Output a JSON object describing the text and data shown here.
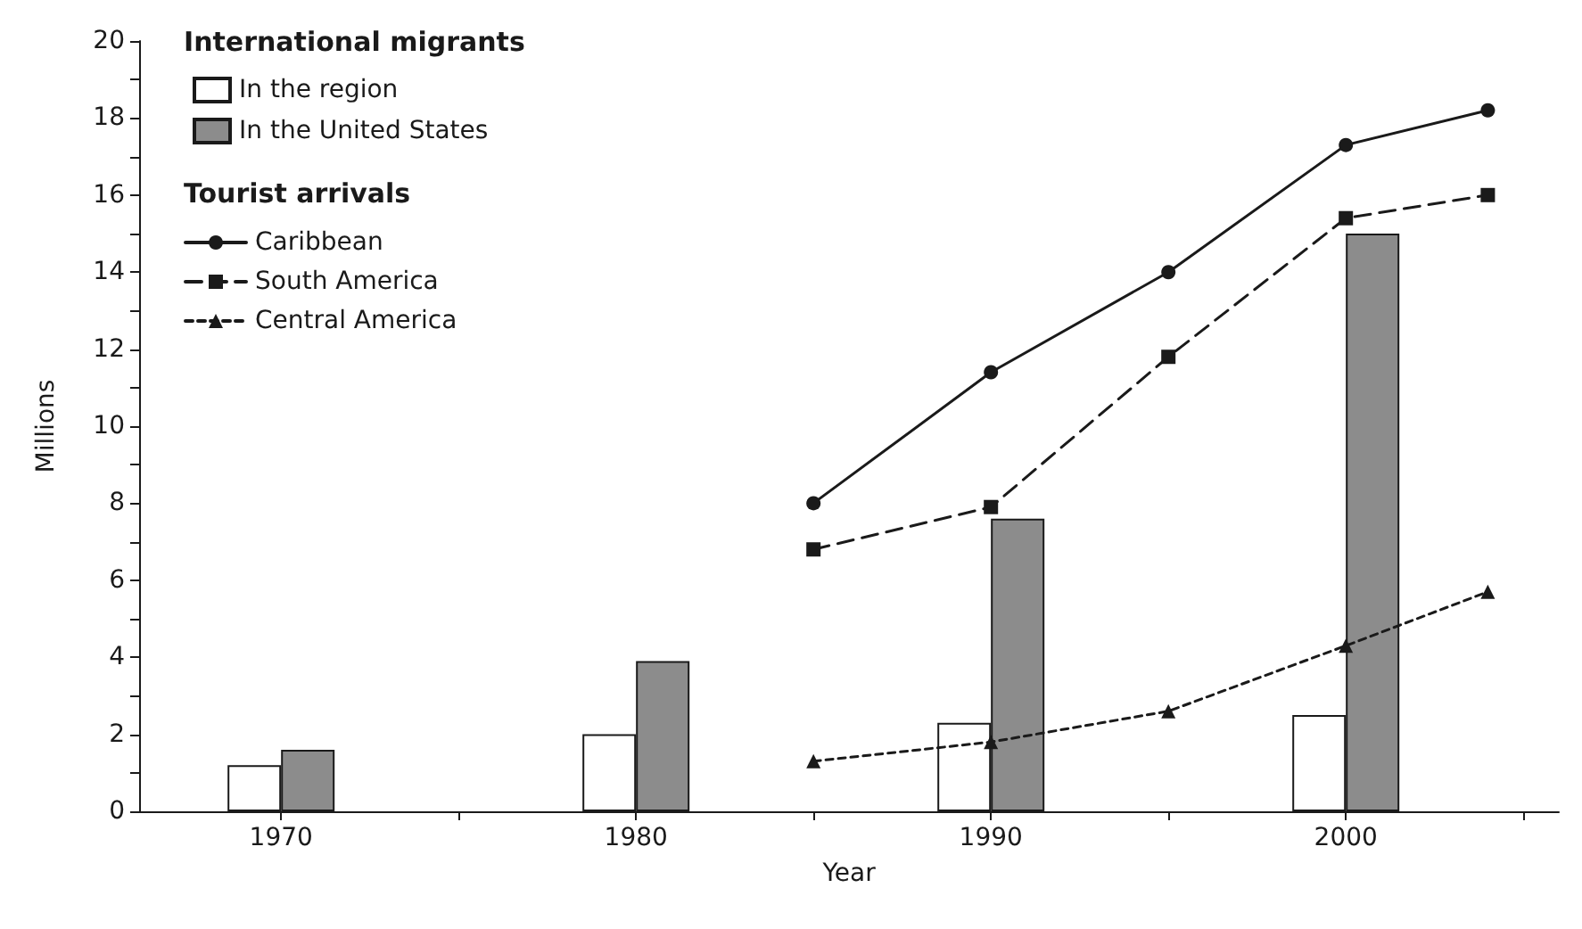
{
  "chart_data": {
    "type": "bar",
    "xlabel": "Year",
    "ylabel": "Millions",
    "legend_title": "International migrants",
    "annotations": [
      "Tourist arrivals"
    ],
    "xlim": [
      1966,
      2006
    ],
    "xticks": [
      1970,
      {
        "value": 1975,
        "label": null
      },
      1980,
      {
        "value": 1985,
        "label": null
      },
      1990,
      {
        "value": 1995,
        "label": null
      },
      2000,
      {
        "value": 2005,
        "label": null
      }
    ],
    "ylim": [
      0,
      20
    ],
    "yticks": [
      0,
      {
        "value": 1,
        "label": null
      },
      2,
      {
        "value": 3,
        "label": null
      },
      4,
      {
        "value": 5,
        "label": null
      },
      6,
      {
        "value": 7,
        "label": null
      },
      8,
      {
        "value": 9,
        "label": null
      },
      10,
      {
        "value": 11,
        "label": null
      },
      12,
      {
        "value": 13,
        "label": null
      },
      14,
      {
        "value": 15,
        "label": null
      },
      16,
      {
        "value": 17,
        "label": null
      },
      18,
      {
        "value": 19,
        "label": null
      },
      20
    ],
    "grid": false,
    "legend": "top left",
    "series": [
      {
        "name": "In the region",
        "color": "#ffffff",
        "x": [
          1970,
          1980,
          1990,
          2000
        ],
        "values": [
          1.2,
          2.0,
          2.3,
          2.5
        ]
      },
      {
        "name": "In the United States",
        "color": "#8c8c8c",
        "x": [
          1970,
          1980,
          1990,
          2000
        ],
        "values": [
          1.6,
          3.9,
          7.6,
          15.0
        ]
      },
      {
        "name": "Caribbean",
        "type": "line",
        "color": "#1a1a1a",
        "marker": "circle",
        "line_style": "solid",
        "x": [
          1985,
          1990,
          1995,
          2000,
          2004
        ],
        "values": [
          8.0,
          11.4,
          14.0,
          17.3,
          18.2
        ]
      },
      {
        "name": "South America",
        "type": "line",
        "color": "#1a1a1a",
        "marker": "square",
        "line_style": "dashed",
        "x": [
          1985,
          1990,
          1995,
          2000,
          2004
        ],
        "values": [
          6.8,
          7.9,
          11.8,
          15.4,
          16.0
        ]
      },
      {
        "name": "Central America",
        "type": "line",
        "color": "#1a1a1a",
        "marker": "triangle",
        "line_style": "dotted",
        "x": [
          1985,
          1990,
          1995,
          2000,
          2004
        ],
        "values": [
          1.3,
          1.8,
          2.6,
          4.3,
          5.7
        ]
      }
    ]
  }
}
